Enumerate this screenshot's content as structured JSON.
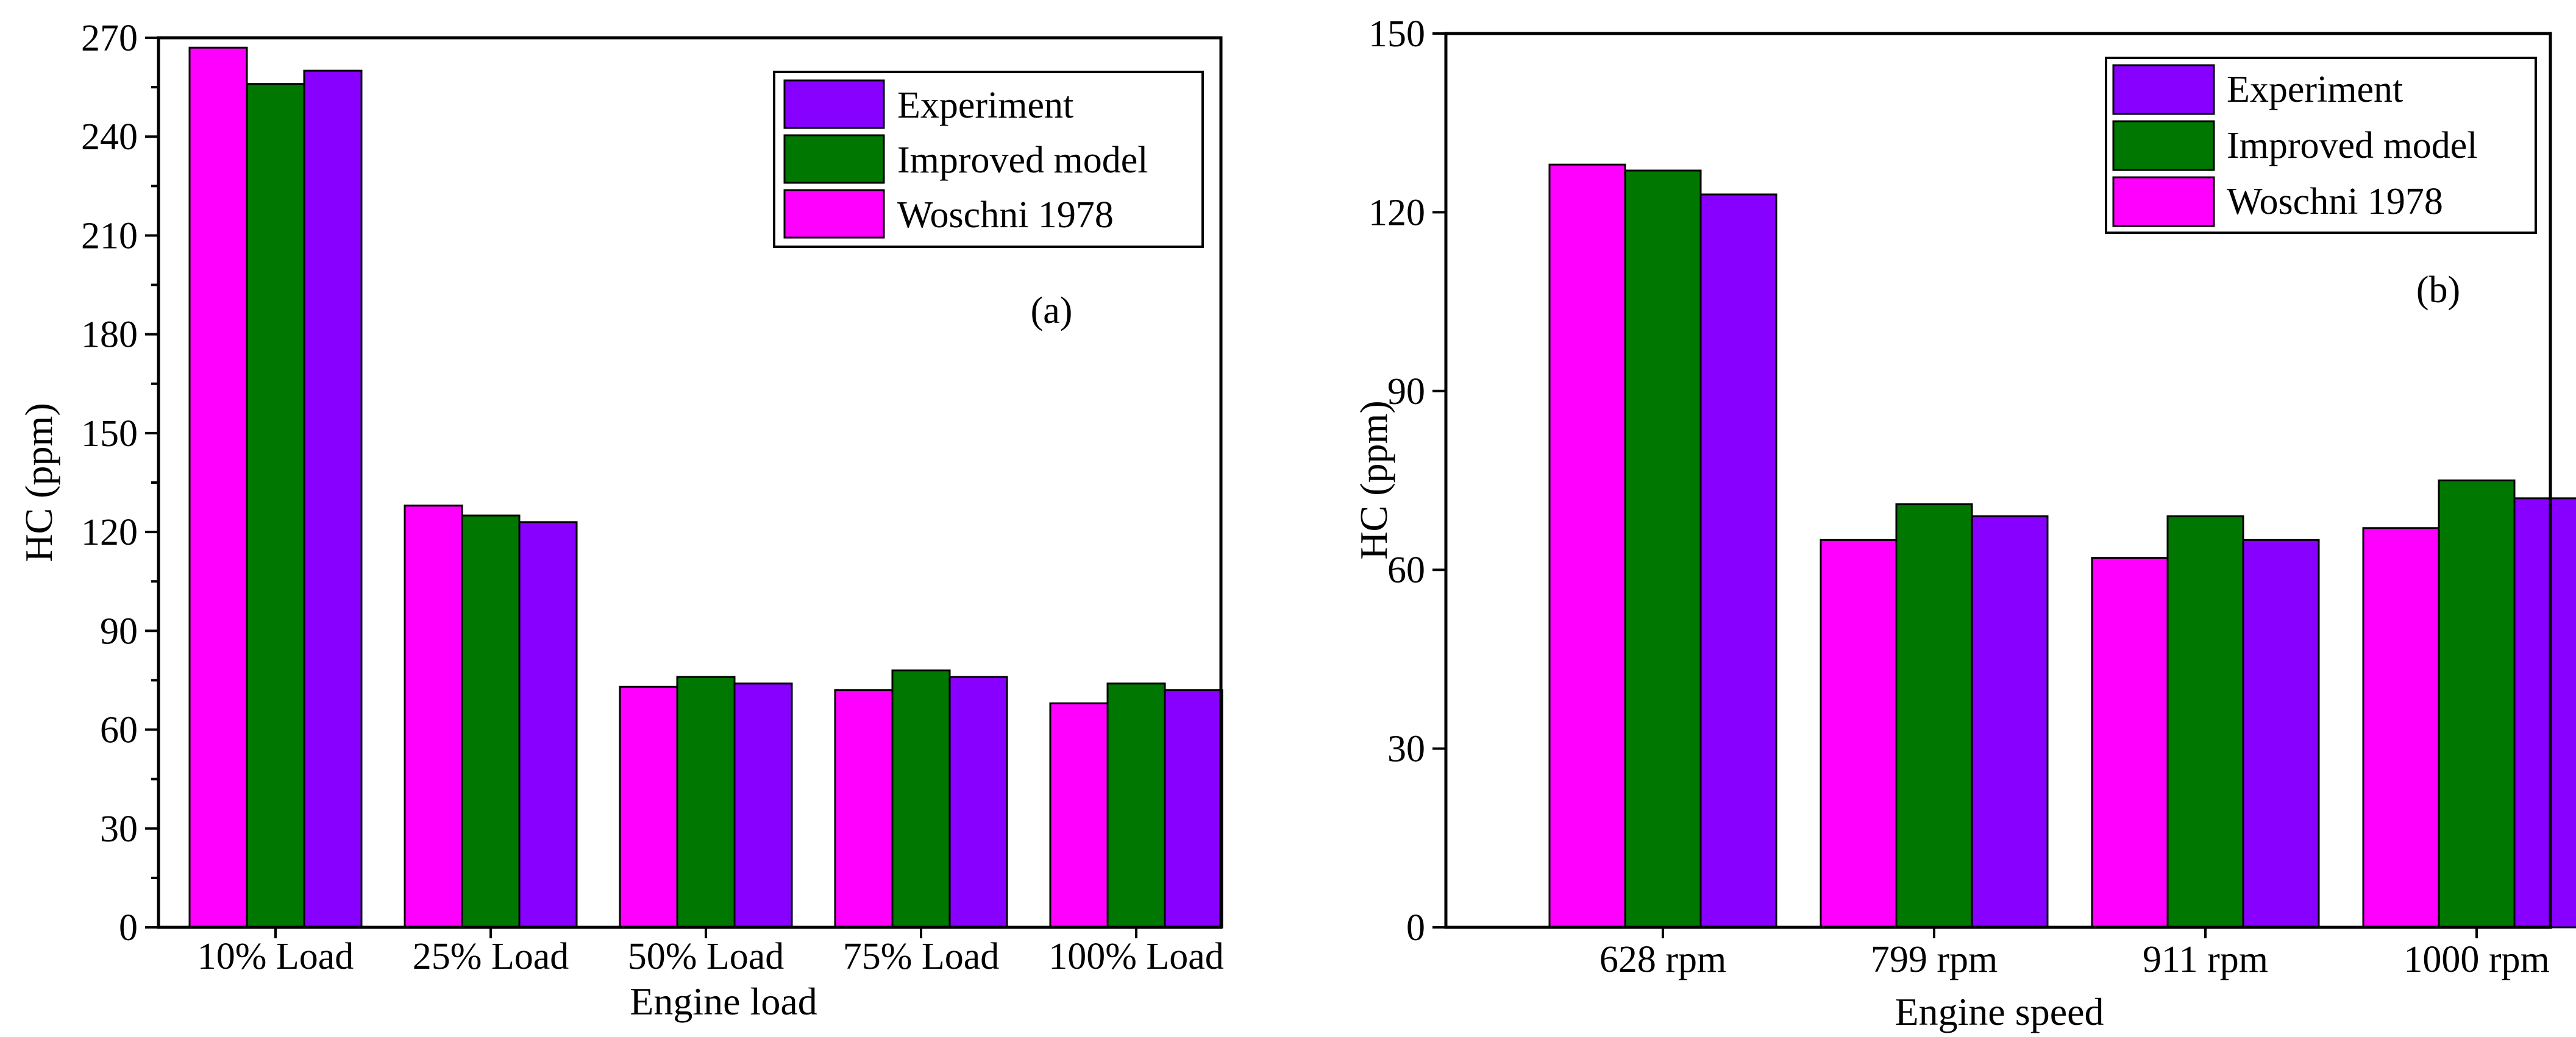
{
  "series_colors": {
    "Woschni 1978": "#ff00ff",
    "Improved model": "#007700",
    "Experiment": "#8800ff"
  },
  "chart_data": [
    {
      "type": "bar",
      "panel_label": "(a)",
      "xlabel": "Engine load",
      "ylabel": "HC (ppm)",
      "ylim": [
        0,
        270
      ],
      "yticks": [
        "0",
        "30",
        "60",
        "90",
        "120",
        "150",
        "180",
        "210",
        "240",
        "270"
      ],
      "categories": [
        "10% Load",
        "25% Load",
        "50% Load",
        "75% Load",
        "100% Load"
      ],
      "series": [
        {
          "name": "Woschni 1978",
          "values": [
            267,
            128,
            73,
            72,
            68
          ]
        },
        {
          "name": "Improved model",
          "values": [
            256,
            125,
            76,
            78,
            74
          ]
        },
        {
          "name": "Experiment",
          "values": [
            260,
            123,
            74,
            76,
            72
          ]
        }
      ],
      "legend": [
        "Experiment",
        "Improved model",
        "Woschni 1978"
      ],
      "legend_position": "top-right",
      "grid": false
    },
    {
      "type": "bar",
      "panel_label": "(b)",
      "xlabel": "Engine speed",
      "ylabel": "HC (ppm)",
      "ylim": [
        0,
        150
      ],
      "yticks": [
        "0",
        "30",
        "60",
        "90",
        "120",
        "150"
      ],
      "categories": [
        "628 rpm",
        "799 rpm",
        "911 rpm",
        "1000 rpm"
      ],
      "series": [
        {
          "name": "Woschni 1978",
          "values": [
            128,
            65,
            62,
            67
          ]
        },
        {
          "name": "Improved model",
          "values": [
            127,
            71,
            69,
            75
          ]
        },
        {
          "name": "Experiment",
          "values": [
            123,
            69,
            65,
            72
          ]
        }
      ],
      "legend": [
        "Experiment",
        "Improved model",
        "Woschni 1978"
      ],
      "legend_position": "top-right",
      "grid": false
    }
  ]
}
